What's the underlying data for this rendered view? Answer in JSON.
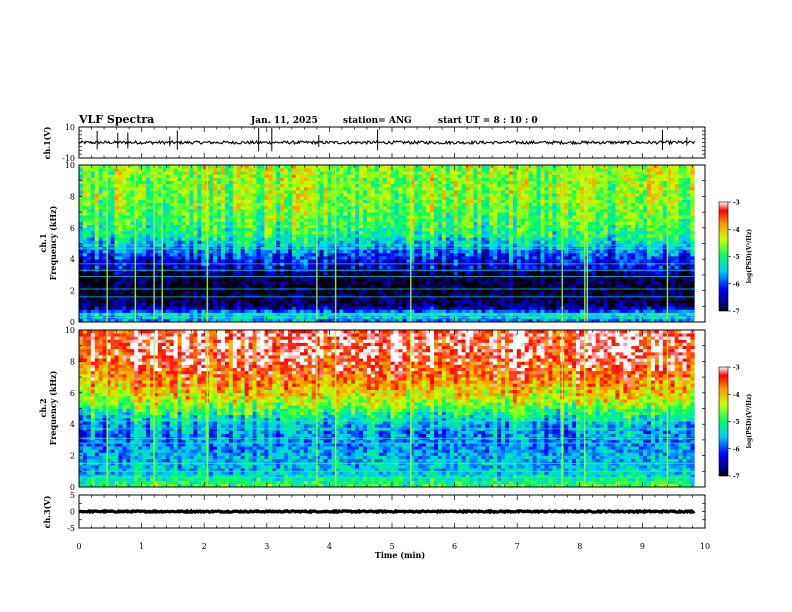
{
  "header": {
    "title": "VLF Spectra",
    "date": "Jan. 11, 2025",
    "station": "station= ANG",
    "start": "start  UT =   8 : 10 : 0"
  },
  "chart_data": [
    {
      "type": "line",
      "panel": "ch1-waveform",
      "ylabel": "ch.1(V)",
      "ylim": [
        -10,
        10
      ],
      "y_ticks": [
        "10",
        "-10"
      ],
      "xlim": [
        0,
        10
      ],
      "trace_level": 0,
      "trace_noise_amplitude": 1,
      "spike_times": [
        0.29,
        0.62,
        0.78,
        1.45,
        1.57,
        2.87,
        3.08,
        3.83,
        4.77,
        9.32,
        9.71
      ]
    },
    {
      "type": "heatmap",
      "panel": "ch1-spectrogram",
      "ylabel": "ch.1\nFrequency (kHz)",
      "ylim": [
        0,
        10
      ],
      "y_ticks": [
        "0",
        "2",
        "4",
        "6",
        "8",
        "10"
      ],
      "xlim": [
        0,
        10
      ],
      "data_end_time": 9.83,
      "colorbar": {
        "label": "log(PSD)(V²/Hz)",
        "min": -7,
        "max": -3,
        "ticks": [
          "-3",
          "-4",
          "-5",
          "-6",
          "-7"
        ]
      },
      "profile_khz": [
        0,
        0.5,
        1,
        2,
        3,
        3.5,
        4,
        4.8,
        5.5,
        6.5,
        8,
        10
      ],
      "profile_log_psd": [
        -5.8,
        -5.3,
        -6.8,
        -7.0,
        -6.9,
        -6.4,
        -6.2,
        -5.6,
        -5.1,
        -4.8,
        -4.6,
        -4.5
      ],
      "line_khz": [
        0.3,
        0.5,
        1.6,
        2.1,
        2.9,
        3.3,
        3.7,
        4.7,
        4.9
      ],
      "sferic_times": [
        0.45,
        0.9,
        1.2,
        1.33,
        2.05,
        3.8,
        4.1,
        5.3,
        7.72,
        8.08,
        8.12,
        9.4
      ]
    },
    {
      "type": "heatmap",
      "panel": "ch2-spectrogram",
      "ylabel": "ch.2\nFrequency (kHz)",
      "ylim": [
        0,
        10
      ],
      "y_ticks": [
        "0",
        "2",
        "4",
        "6",
        "8",
        "10"
      ],
      "xlim": [
        0,
        10
      ],
      "data_end_time": 9.83,
      "colorbar": {
        "label": "log(PSD)(V²/Hz)",
        "min": -7,
        "max": -3,
        "ticks": [
          "-3",
          "-4",
          "-5",
          "-6",
          "-7"
        ]
      },
      "profile_khz": [
        0,
        0.5,
        1,
        2,
        3,
        4,
        4.8,
        5.5,
        6.5,
        7.5,
        8.5,
        10
      ],
      "profile_log_psd": [
        -4.8,
        -5.2,
        -5.5,
        -5.6,
        -5.8,
        -5.6,
        -5.0,
        -4.4,
        -3.9,
        -3.5,
        -3.2,
        -3.2
      ],
      "line_khz": [
        0.6,
        1.0,
        1.5,
        2.8,
        3.1,
        3.7,
        4.2
      ],
      "sferic_times": [
        0.45,
        1.2,
        2.05,
        3.8,
        4.1,
        5.3,
        7.72,
        8.08,
        9.4
      ]
    },
    {
      "type": "line",
      "panel": "ch3-waveform",
      "ylabel": "ch.3(V)",
      "ylim": [
        -5,
        5
      ],
      "y_ticks": [
        "5",
        "0",
        "-5"
      ],
      "xlim": [
        0,
        10
      ],
      "trace_level": 0,
      "trace_noise_amplitude": 0.2
    }
  ],
  "x_axis": {
    "xlabel": "Time (min)",
    "tick_labels": [
      "0",
      "1",
      "2",
      "3",
      "4",
      "5",
      "6",
      "7",
      "8",
      "9",
      "10"
    ]
  }
}
